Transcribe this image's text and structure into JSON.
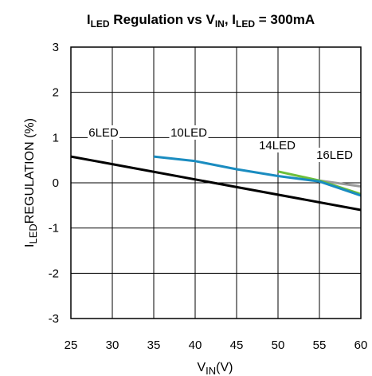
{
  "chart_data": {
    "type": "line",
    "title": {
      "parts": [
        {
          "text": "I",
          "sub": false
        },
        {
          "text": "LED",
          "sub": true
        },
        {
          "text": " Regulation vs V",
          "sub": false
        },
        {
          "text": "IN",
          "sub": true
        },
        {
          "text": ", I",
          "sub": false
        },
        {
          "text": "LED",
          "sub": true
        },
        {
          "text": " = 300mA",
          "sub": false
        }
      ]
    },
    "xlabel": {
      "main": "V",
      "sub": "IN",
      "tail": "(V)"
    },
    "ylabel": {
      "main": "I",
      "sub": "LED",
      "tail": "REGULATION (%)"
    },
    "xlim": [
      25,
      60
    ],
    "ylim": [
      -3,
      3
    ],
    "xticks": [
      25,
      30,
      35,
      40,
      45,
      50,
      55,
      60
    ],
    "yticks": [
      3,
      2,
      1,
      0,
      -1,
      -2,
      -3
    ],
    "grid": true,
    "series": [
      {
        "name": "6LED",
        "color": "#000000",
        "x": [
          25,
          60
        ],
        "y": [
          0.58,
          -0.6
        ]
      },
      {
        "name": "10LED",
        "color": "#1a8cc0",
        "x": [
          35,
          40,
          45,
          50,
          55,
          60
        ],
        "y": [
          0.58,
          0.48,
          0.3,
          0.15,
          0.03,
          -0.28
        ]
      },
      {
        "name": "14LED",
        "color": "#6dbf3a",
        "x": [
          50,
          55,
          60
        ],
        "y": [
          0.25,
          0.05,
          -0.25
        ]
      },
      {
        "name": "16LED",
        "color": "#9a9a9a",
        "x": [
          55,
          60
        ],
        "y": [
          0.05,
          -0.08
        ]
      }
    ]
  }
}
